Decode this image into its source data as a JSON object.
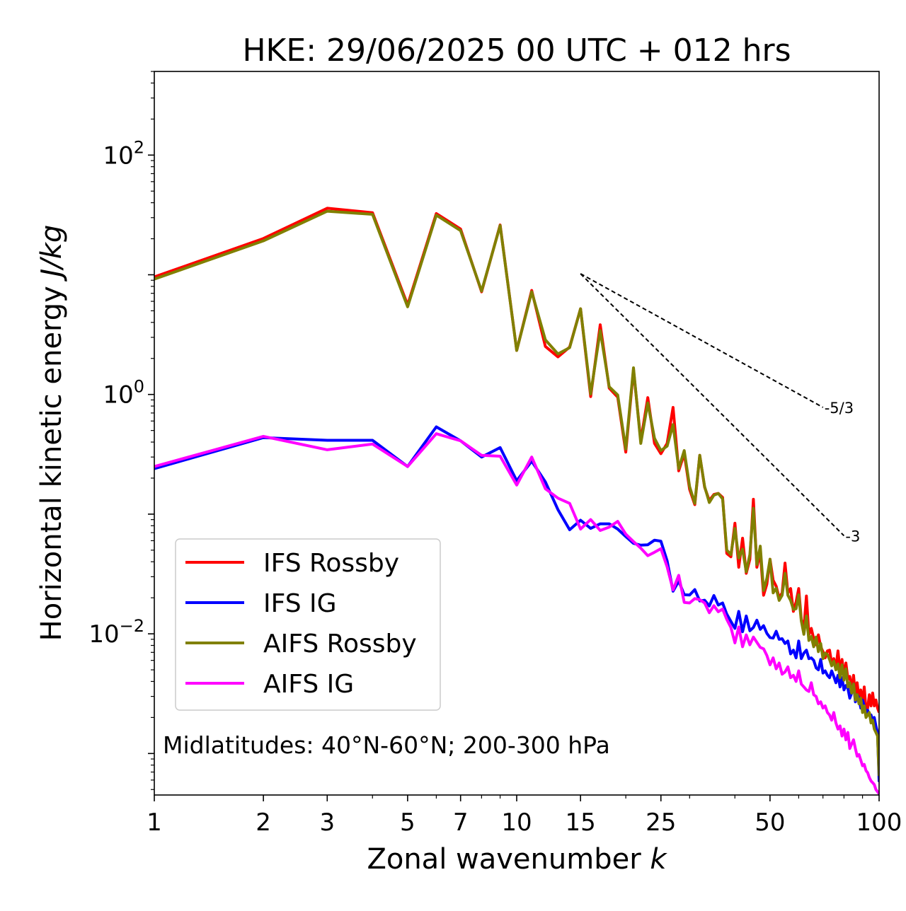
{
  "chart_data": {
    "type": "line",
    "title": "HKE: 29/06/2025 00 UTC + 012 hrs",
    "xlabel": {
      "text": "Zonal wavenumber ",
      "var": "k"
    },
    "ylabel": {
      "text": "Horizontal kinetic energy ",
      "unit": "J/kg"
    },
    "xscale": "log",
    "yscale": "log",
    "xlim": [
      1,
      100
    ],
    "ylim": [
      0.00045,
      500
    ],
    "xticks": [
      {
        "value": 1,
        "label": "1"
      },
      {
        "value": 2,
        "label": "2"
      },
      {
        "value": 3,
        "label": "3"
      },
      {
        "value": 5,
        "label": "5"
      },
      {
        "value": 7,
        "label": "7"
      },
      {
        "value": 10,
        "label": "10"
      },
      {
        "value": 15,
        "label": "15"
      },
      {
        "value": 25,
        "label": "25"
      },
      {
        "value": 50,
        "label": "50"
      },
      {
        "value": 100,
        "label": "100"
      }
    ],
    "yticks": [
      {
        "value": 0.01,
        "base": "10",
        "exp": "−2"
      },
      {
        "value": 1,
        "base": "10",
        "exp": "0"
      },
      {
        "value": 100,
        "base": "10",
        "exp": "2"
      }
    ],
    "grid": false,
    "legend": {
      "placement": "lower-left"
    },
    "annotation": "Midlatitudes: 40°N-60°N; 200-300 hPa",
    "reference_slopes": [
      {
        "label": "-5/3",
        "x": [
          15,
          70
        ],
        "y": [
          10.2,
          0.78
        ]
      },
      {
        "label": "-3",
        "x": [
          15,
          80
        ],
        "y": [
          10.2,
          0.066
        ]
      }
    ],
    "series": [
      {
        "name": "IFS Rossby",
        "color": "#ff0000",
        "x": [
          1,
          2,
          3,
          4,
          5,
          6,
          7,
          8,
          9,
          10,
          11,
          12,
          13,
          14,
          15,
          16,
          17,
          18,
          19,
          20,
          21,
          22,
          23,
          24,
          25,
          26,
          27,
          28,
          29,
          30,
          31,
          32,
          33,
          34,
          35,
          36,
          37,
          38,
          39,
          40,
          41,
          42,
          43,
          44,
          45,
          46,
          47,
          48,
          49,
          50,
          51,
          52,
          53,
          54,
          55,
          56,
          57,
          58,
          59,
          60,
          61,
          62,
          63,
          64,
          65,
          66,
          67,
          68,
          69,
          70,
          71,
          72,
          73,
          74,
          75,
          76,
          77,
          78,
          79,
          80,
          81,
          82,
          83,
          84,
          85,
          86,
          87,
          88,
          89,
          90,
          91,
          92,
          93,
          94,
          95,
          96,
          97,
          98,
          99,
          100
        ],
        "y": [
          9.6,
          20.1,
          36.0,
          33.0,
          5.6,
          32.5,
          24.1,
          7.2,
          26.1,
          2.33,
          7.4,
          2.52,
          2.06,
          2.49,
          5.2,
          0.96,
          3.82,
          1.13,
          0.95,
          0.33,
          1.61,
          0.41,
          0.94,
          0.39,
          0.32,
          0.39,
          0.78,
          0.23,
          0.32,
          0.161,
          0.12,
          0.31,
          0.168,
          0.13,
          0.146,
          0.149,
          0.138,
          0.047,
          0.044,
          0.084,
          0.036,
          0.063,
          0.032,
          0.042,
          0.133,
          0.036,
          0.048,
          0.021,
          0.026,
          0.042,
          0.028,
          0.025,
          0.02,
          0.022,
          0.039,
          0.022,
          0.0239,
          0.0154,
          0.0184,
          0.0239,
          0.0132,
          0.011,
          0.0207,
          0.0098,
          0.0111,
          0.0091,
          0.0081,
          0.0098,
          0.0078,
          0.0071,
          0.0063,
          0.0072,
          0.0073,
          0.0057,
          0.0062,
          0.0052,
          0.0072,
          0.0049,
          0.0061,
          0.0045,
          0.0057,
          0.0042,
          0.0044,
          0.0034,
          0.0045,
          0.0031,
          0.0039,
          0.0029,
          0.0034,
          0.0026,
          0.0036,
          0.0023,
          0.0024,
          0.0031,
          0.0025,
          0.0032,
          0.0025,
          0.0028,
          0.0024,
          0.0022
        ]
      },
      {
        "name": "IFS IG",
        "color": "#0000ff",
        "x": [
          1,
          2,
          3,
          4,
          5,
          6,
          7,
          8,
          9,
          10,
          11,
          12,
          13,
          14,
          15,
          16,
          17,
          18,
          19,
          20,
          21,
          22,
          23,
          24,
          25,
          26,
          27,
          28,
          29,
          30,
          31,
          32,
          33,
          34,
          35,
          36,
          37,
          38,
          39,
          40,
          41,
          42,
          43,
          44,
          45,
          46,
          47,
          48,
          49,
          50,
          51,
          52,
          53,
          54,
          55,
          56,
          57,
          58,
          59,
          60,
          61,
          62,
          63,
          64,
          65,
          66,
          67,
          68,
          69,
          70,
          71,
          72,
          73,
          74,
          75,
          76,
          77,
          78,
          79,
          80,
          81,
          82,
          83,
          84,
          85,
          86,
          87,
          88,
          89,
          90,
          91,
          92,
          93,
          94,
          95,
          96,
          97,
          98,
          99,
          100
        ],
        "y": [
          0.24,
          0.436,
          0.414,
          0.414,
          0.25,
          0.536,
          0.41,
          0.3,
          0.36,
          0.19,
          0.277,
          0.186,
          0.109,
          0.074,
          0.089,
          0.076,
          0.083,
          0.083,
          0.075,
          0.065,
          0.057,
          0.055,
          0.0555,
          0.0606,
          0.0595,
          0.0408,
          0.0227,
          0.0276,
          0.0212,
          0.0211,
          0.0234,
          0.0188,
          0.0191,
          0.0171,
          0.0209,
          0.0174,
          0.0181,
          0.0146,
          0.0127,
          0.0111,
          0.0154,
          0.0104,
          0.0141,
          0.0106,
          0.0113,
          0.013,
          0.0109,
          0.0117,
          0.0101,
          0.0093,
          0.0092,
          0.0105,
          0.009,
          0.0091,
          0.0083,
          0.0087,
          0.0068,
          0.0073,
          0.0063,
          0.0087,
          0.0062,
          0.0069,
          0.0073,
          0.0062,
          0.0063,
          0.006,
          0.0052,
          0.005,
          0.0061,
          0.0047,
          0.0049,
          0.0045,
          0.0043,
          0.0049,
          0.0044,
          0.0039,
          0.0045,
          0.0036,
          0.0043,
          0.0034,
          0.0037,
          0.0035,
          0.0029,
          0.0032,
          0.0038,
          0.0027,
          0.0031,
          0.0029,
          0.0024,
          0.0028,
          0.0025,
          0.0022,
          0.0023,
          0.0021,
          0.0021,
          0.0019,
          0.002,
          0.0017,
          0.0015,
          0.00058
        ]
      },
      {
        "name": "AIFS Rossby",
        "color": "#808000",
        "x": [
          1,
          2,
          3,
          4,
          5,
          6,
          7,
          8,
          9,
          10,
          11,
          12,
          13,
          14,
          15,
          16,
          17,
          18,
          19,
          20,
          21,
          22,
          23,
          24,
          25,
          26,
          27,
          28,
          29,
          30,
          31,
          32,
          33,
          34,
          35,
          36,
          37,
          38,
          39,
          40,
          41,
          42,
          43,
          44,
          45,
          46,
          47,
          48,
          49,
          50,
          51,
          52,
          53,
          54,
          55,
          56,
          57,
          58,
          59,
          60,
          61,
          62,
          63,
          64,
          65,
          66,
          67,
          68,
          69,
          70,
          71,
          72,
          73,
          74,
          75,
          76,
          77,
          78,
          79,
          80,
          81,
          82,
          83,
          84,
          85,
          86,
          87,
          88,
          89,
          90,
          91,
          92,
          93,
          94,
          95,
          96,
          97,
          98,
          99,
          100
        ],
        "y": [
          9.2,
          19.2,
          34.0,
          32.0,
          5.4,
          31.5,
          23.4,
          7.3,
          25.8,
          2.33,
          7.2,
          2.86,
          2.18,
          2.46,
          5.2,
          1.01,
          3.42,
          1.16,
          0.99,
          0.35,
          1.67,
          0.39,
          0.85,
          0.43,
          0.34,
          0.37,
          0.56,
          0.24,
          0.34,
          0.17,
          0.123,
          0.31,
          0.17,
          0.125,
          0.144,
          0.149,
          0.134,
          0.05,
          0.046,
          0.076,
          0.043,
          0.051,
          0.033,
          0.046,
          0.112,
          0.038,
          0.054,
          0.023,
          0.029,
          0.042,
          0.022,
          0.024,
          0.019,
          0.021,
          0.032,
          0.021,
          0.019,
          0.016,
          0.0162,
          0.0212,
          0.0128,
          0.0099,
          0.0141,
          0.0088,
          0.0095,
          0.0078,
          0.0094,
          0.0071,
          0.0083,
          0.0062,
          0.0069,
          0.0067,
          0.0061,
          0.0054,
          0.0059,
          0.005,
          0.0056,
          0.0043,
          0.0055,
          0.0041,
          0.0051,
          0.0036,
          0.0039,
          0.0032,
          0.0038,
          0.0028,
          0.0031,
          0.0026,
          0.0029,
          0.0022,
          0.0025,
          0.002,
          0.0021,
          0.0022,
          0.0018,
          0.0019,
          0.0016,
          0.0015,
          0.0014,
          0.00065
        ]
      },
      {
        "name": "AIFS IG",
        "color": "#ff00ff",
        "x": [
          1,
          2,
          3,
          4,
          5,
          6,
          7,
          8,
          9,
          10,
          11,
          12,
          13,
          14,
          15,
          16,
          17,
          18,
          19,
          20,
          21,
          22,
          23,
          24,
          25,
          26,
          27,
          28,
          29,
          30,
          31,
          32,
          33,
          34,
          35,
          36,
          37,
          38,
          39,
          40,
          41,
          42,
          43,
          44,
          45,
          46,
          47,
          48,
          49,
          50,
          51,
          52,
          53,
          54,
          55,
          56,
          57,
          58,
          59,
          60,
          61,
          62,
          63,
          64,
          65,
          66,
          67,
          68,
          69,
          70,
          71,
          72,
          73,
          74,
          75,
          76,
          77,
          78,
          79,
          80,
          81,
          82,
          83,
          84,
          85,
          86,
          87,
          88,
          89,
          90,
          91,
          92,
          93,
          94,
          95,
          96,
          97,
          98,
          99,
          100
        ],
        "y": [
          0.25,
          0.447,
          0.345,
          0.385,
          0.25,
          0.47,
          0.41,
          0.31,
          0.305,
          0.175,
          0.3,
          0.163,
          0.136,
          0.123,
          0.075,
          0.09,
          0.073,
          0.078,
          0.087,
          0.068,
          0.059,
          0.052,
          0.045,
          0.048,
          0.0515,
          0.0363,
          0.0233,
          0.0308,
          0.0183,
          0.0181,
          0.0197,
          0.0193,
          0.0181,
          0.015,
          0.0172,
          0.0153,
          0.0161,
          0.0132,
          0.0113,
          0.0084,
          0.0114,
          0.0078,
          0.0098,
          0.0081,
          0.0094,
          0.0085,
          0.0077,
          0.0075,
          0.0066,
          0.0055,
          0.0063,
          0.0051,
          0.0057,
          0.0046,
          0.0048,
          0.0053,
          0.0043,
          0.0045,
          0.004,
          0.0049,
          0.0038,
          0.0036,
          0.0034,
          0.0033,
          0.0039,
          0.0031,
          0.003,
          0.0026,
          0.0027,
          0.0024,
          0.0025,
          0.0022,
          0.0021,
          0.0019,
          0.0022,
          0.0018,
          0.0016,
          0.0017,
          0.0014,
          0.0016,
          0.0013,
          0.0015,
          0.0011,
          0.0012,
          0.0013,
          0.0011,
          0.00095,
          0.00098,
          0.00088,
          0.00079,
          0.00081,
          0.00072,
          0.00069,
          0.00063,
          0.00059,
          0.00057,
          0.00055,
          0.0005,
          0.00048,
          0.00046
        ]
      }
    ]
  }
}
